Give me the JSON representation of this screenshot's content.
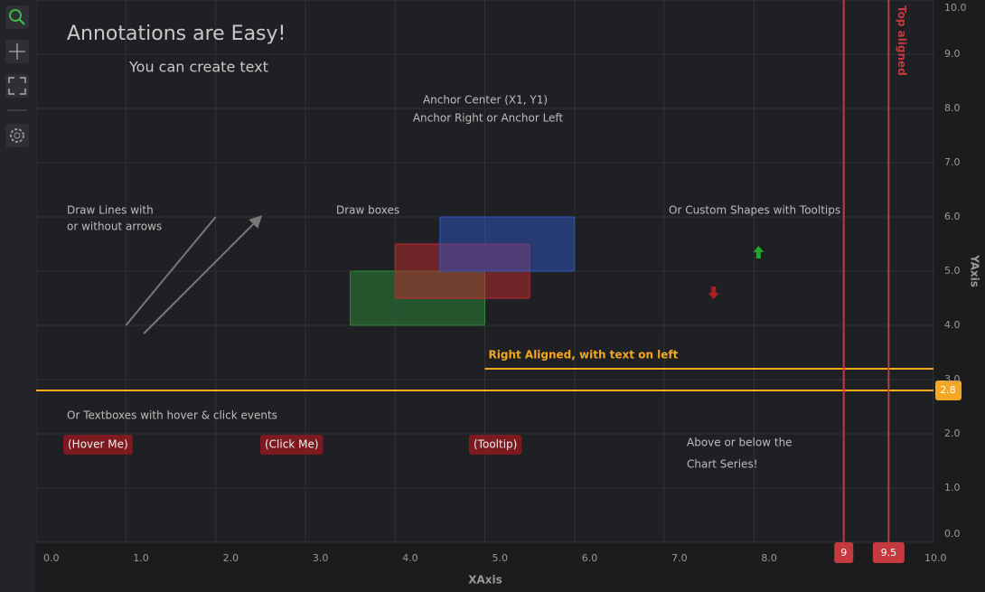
{
  "chart_data": {
    "type": "annotations",
    "title": "Annotations are Easy!",
    "subtitle": "You can create text",
    "xlabel": "XAxis",
    "ylabel": "YAxis",
    "xlim": [
      0,
      10
    ],
    "ylim": [
      0,
      10
    ],
    "xticks": [
      {
        "value": 0,
        "label": "0.0"
      },
      {
        "value": 1,
        "label": "1.0"
      },
      {
        "value": 2,
        "label": "2.0"
      },
      {
        "value": 3,
        "label": "3.0"
      },
      {
        "value": 4,
        "label": "4.0"
      },
      {
        "value": 5,
        "label": "5.0"
      },
      {
        "value": 6,
        "label": "6.0"
      },
      {
        "value": 7,
        "label": "7.0"
      },
      {
        "value": 8,
        "label": "8.0"
      },
      {
        "value": 10,
        "label": "10.0"
      }
    ],
    "yticks": [
      {
        "value": 0,
        "label": "0.0"
      },
      {
        "value": 1,
        "label": "1.0"
      },
      {
        "value": 2,
        "label": "2.0"
      },
      {
        "value": 3,
        "label": "3.0"
      },
      {
        "value": 4,
        "label": "4.0"
      },
      {
        "value": 5,
        "label": "5.0"
      },
      {
        "value": 6,
        "label": "6.0"
      },
      {
        "value": 7,
        "label": "7.0"
      },
      {
        "value": 8,
        "label": "8.0"
      },
      {
        "value": 9,
        "label": "9.0"
      },
      {
        "value": 10,
        "label": "10.0"
      }
    ],
    "grid": true,
    "notes": [
      "Anchor Center (X1, Y1)",
      "Anchor Right  or Anchor Left",
      "Draw Lines with",
      "or without arrows",
      "Draw boxes",
      "Or Custom Shapes with Tooltips",
      "Or Textboxes with hover & click events",
      "Above or below the",
      "Chart Series!"
    ],
    "lines": [
      {
        "x1": 1,
        "y1": 4,
        "x2": 2,
        "y2": 6,
        "arrow": false
      },
      {
        "x1": 1.2,
        "y1": 3.85,
        "x2": 2.5,
        "y2": 6,
        "arrow": true
      }
    ],
    "boxes": [
      {
        "x1": 3.5,
        "x2": 5,
        "y1": 4,
        "y2": 5,
        "color": "#2e8b3a"
      },
      {
        "x1": 4,
        "x2": 5.5,
        "y1": 4.5,
        "y2": 5.5,
        "color": "#c0282d"
      },
      {
        "x1": 4.5,
        "x2": 6,
        "y1": 5,
        "y2": 6,
        "color": "#2f56c4"
      }
    ],
    "shapes": [
      {
        "x": 8.05,
        "y": 5.35,
        "dir": "up",
        "color": "#1fa82b"
      },
      {
        "x": 7.55,
        "y": 4.6,
        "dir": "down",
        "color": "#b01e22"
      }
    ],
    "hlines": [
      {
        "y": 2.8,
        "label": "2.8",
        "color": "#f5a623"
      },
      {
        "y": 3.2,
        "x1": 5,
        "text": "Right Aligned, with text on left",
        "color": "#f5a623"
      }
    ],
    "vlines": [
      {
        "x": 9,
        "label": "9",
        "color": "#c43a3f"
      },
      {
        "x": 9.5,
        "label": "9.5",
        "text": "Top aligned",
        "color": "#c43a3f"
      }
    ],
    "buttons": [
      "(Hover Me)",
      "(Click Me)",
      "(Tooltip)"
    ]
  }
}
